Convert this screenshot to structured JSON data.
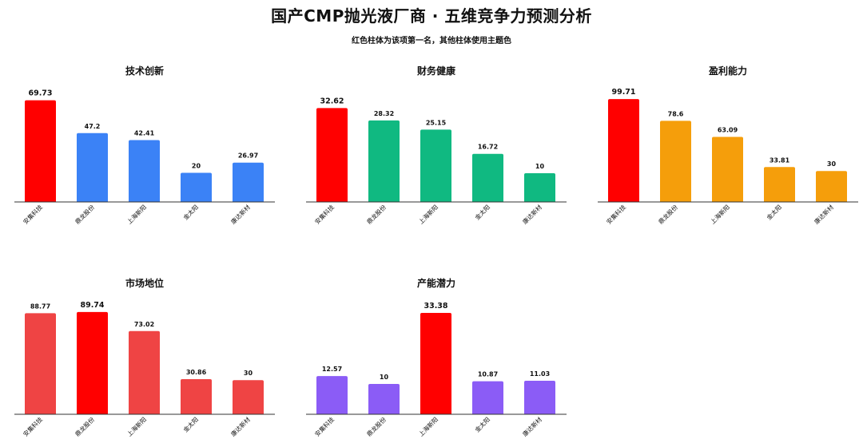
{
  "title": "国产CMP抛光液厂商 · 五维竞争力预测分析",
  "subtitle": "红色柱体为该项第一名，其他柱体使用主题色",
  "highlight_color": "#ff0000",
  "chart_data": [
    {
      "type": "bar",
      "title": "技术创新",
      "categories": [
        "安集科技",
        "鼎龙股份",
        "上海新阳",
        "金太阳",
        "康达新材"
      ],
      "values": [
        69.73,
        47.2,
        42.41,
        20,
        26.97
      ],
      "value_labels": [
        "69.73",
        "47.2",
        "42.41",
        "20",
        "26.97"
      ],
      "ylim": [
        0,
        75
      ],
      "theme_color": "#3b82f6",
      "top_index": 0
    },
    {
      "type": "bar",
      "title": "财务健康",
      "categories": [
        "安集科技",
        "鼎龙股份",
        "上海新阳",
        "金太阳",
        "康达新材"
      ],
      "values": [
        32.62,
        28.32,
        25.15,
        16.72,
        10
      ],
      "value_labels": [
        "32.62",
        "28.32",
        "25.15",
        "16.72",
        "10"
      ],
      "ylim": [
        0,
        38
      ],
      "theme_color": "#10b981",
      "top_index": 0
    },
    {
      "type": "bar",
      "title": "盈利能力",
      "categories": [
        "安集科技",
        "鼎龙股份",
        "上海新阳",
        "金太阳",
        "康达新材"
      ],
      "values": [
        99.71,
        78.6,
        63.09,
        33.81,
        30
      ],
      "value_labels": [
        "99.71",
        "78.6",
        "63.09",
        "33.81",
        "30"
      ],
      "ylim": [
        0,
        106
      ],
      "theme_color": "#f59e0b",
      "top_index": 0
    },
    {
      "type": "bar",
      "title": "市场地位",
      "categories": [
        "安集科技",
        "鼎龙股份",
        "上海新阳",
        "金太阳",
        "康达新材"
      ],
      "values": [
        88.77,
        89.74,
        73.02,
        30.86,
        30
      ],
      "value_labels": [
        "88.77",
        "89.74",
        "73.02",
        "30.86",
        "30"
      ],
      "ylim": [
        0,
        96
      ],
      "theme_color": "#ef4444",
      "top_index": 1
    },
    {
      "type": "bar",
      "title": "产能潜力",
      "categories": [
        "安集科技",
        "鼎龙股份",
        "上海新阳",
        "金太阳",
        "康达新材"
      ],
      "values": [
        12.57,
        10,
        33.38,
        10.87,
        11.03
      ],
      "value_labels": [
        "12.57",
        "10",
        "33.38",
        "10.87",
        "11.03"
      ],
      "ylim": [
        0,
        36
      ],
      "theme_color": "#8b5cf6",
      "top_index": 2
    }
  ]
}
